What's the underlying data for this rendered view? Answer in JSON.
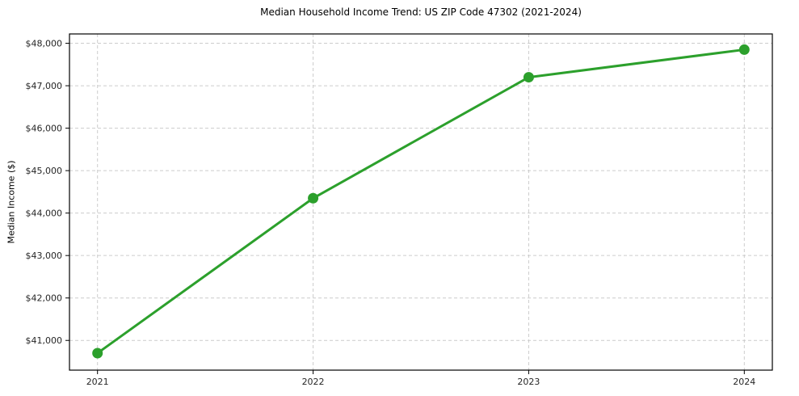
{
  "chart_data": {
    "type": "line",
    "title": "Median Household Income Trend: US ZIP Code 47302 (2021-2024)",
    "xlabel": "",
    "ylabel": "Median Income ($)",
    "x": [
      2021,
      2022,
      2023,
      2024
    ],
    "x_tick_labels": [
      "2021",
      "2022",
      "2023",
      "2024"
    ],
    "series": [
      {
        "name": "Median Household Income",
        "values": [
          40700,
          44350,
          47200,
          47850
        ]
      }
    ],
    "y_ticks": [
      41000,
      42000,
      43000,
      44000,
      45000,
      46000,
      47000,
      48000
    ],
    "y_tick_labels": [
      "$41,000",
      "$42,000",
      "$43,000",
      "$44,000",
      "$45,000",
      "$46,000",
      "$47,000",
      "$48,000"
    ],
    "xlim": [
      2020.87,
      2024.13
    ],
    "ylim": [
      40300,
      48220
    ],
    "grid": true,
    "grid_style": "dashed",
    "legend": "none",
    "colors": {
      "line": "#2ca02c",
      "marker": "#2ca02c",
      "grid": "#cccccc",
      "axis": "#000000",
      "tick_label": "#262626",
      "background": "#ffffff"
    }
  }
}
